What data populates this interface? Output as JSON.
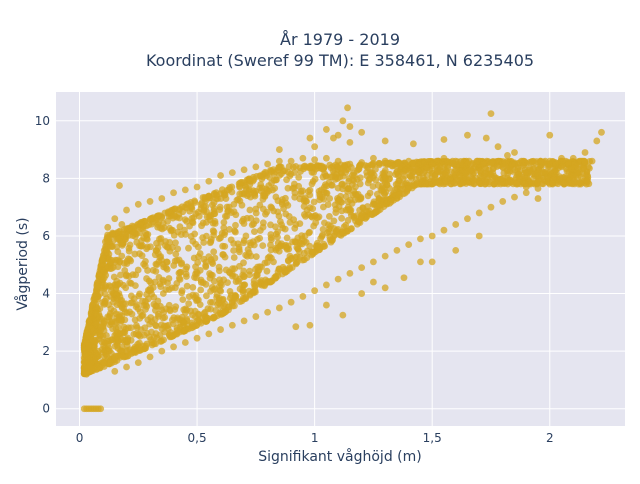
{
  "chart_data": {
    "type": "scatter",
    "title_line1": "År 1979 - 2019",
    "title_line2": "Koordinat (Sweref 99 TM): E 358461, N 6235405",
    "xlabel": "Signifikant våghöjd (m)",
    "ylabel": "Vågperiod (s)",
    "xlim": [
      -0.1,
      2.32
    ],
    "ylim": [
      -0.6,
      11.0
    ],
    "x_ticks": [
      0,
      0.5,
      1,
      1.5,
      2
    ],
    "x_tick_labels": [
      "0",
      "0,5",
      "1",
      "1,5",
      "2"
    ],
    "y_ticks": [
      0,
      2,
      4,
      6,
      8,
      10
    ],
    "y_tick_labels": [
      "0",
      "2",
      "4",
      "6",
      "8",
      "10"
    ],
    "grid": true,
    "marker_color": "#d4a520",
    "plot_bg": "#e5e5f0",
    "series": [
      {
        "points": [
          [
            0.02,
            0.0
          ],
          [
            0.03,
            0.0
          ],
          [
            0.04,
            0.0
          ],
          [
            0.05,
            0.0
          ],
          [
            0.06,
            0.0
          ],
          [
            0.07,
            0.0
          ],
          [
            0.08,
            0.0
          ],
          [
            0.09,
            0.0
          ],
          [
            0.02,
            1.4
          ],
          [
            0.03,
            1.2
          ],
          [
            0.04,
            1.7
          ],
          [
            0.05,
            2.2
          ],
          [
            0.06,
            2.7
          ],
          [
            0.07,
            3.3
          ],
          [
            0.08,
            3.9
          ],
          [
            0.09,
            4.6
          ],
          [
            0.1,
            5.2
          ],
          [
            0.11,
            5.8
          ],
          [
            0.12,
            6.3
          ],
          [
            0.14,
            6.1
          ],
          [
            0.15,
            6.6
          ],
          [
            0.18,
            6.4
          ],
          [
            0.17,
            7.75
          ],
          [
            0.2,
            6.9
          ],
          [
            0.25,
            7.1
          ],
          [
            0.3,
            7.2
          ],
          [
            0.35,
            7.3
          ],
          [
            0.4,
            7.5
          ],
          [
            0.45,
            7.6
          ],
          [
            0.5,
            7.7
          ],
          [
            0.55,
            7.9
          ],
          [
            0.6,
            8.1
          ],
          [
            0.65,
            8.2
          ],
          [
            0.7,
            8.3
          ],
          [
            0.75,
            8.4
          ],
          [
            0.8,
            8.5
          ],
          [
            0.85,
            8.6
          ],
          [
            0.9,
            8.6
          ],
          [
            0.95,
            8.7
          ],
          [
            1.0,
            8.65
          ],
          [
            1.05,
            8.7
          ],
          [
            1.1,
            8.6
          ],
          [
            1.15,
            8.5
          ],
          [
            1.2,
            8.55
          ],
          [
            1.25,
            8.7
          ],
          [
            1.3,
            8.6
          ],
          [
            1.35,
            8.5
          ],
          [
            1.4,
            8.6
          ],
          [
            1.45,
            8.5
          ],
          [
            1.5,
            8.5
          ],
          [
            1.55,
            8.7
          ],
          [
            1.6,
            8.6
          ],
          [
            1.65,
            8.5
          ],
          [
            1.7,
            8.6
          ],
          [
            1.75,
            8.5
          ],
          [
            1.8,
            8.4
          ],
          [
            1.85,
            8.3
          ],
          [
            1.9,
            8.2
          ],
          [
            1.95,
            8.1
          ],
          [
            2.0,
            8.2
          ],
          [
            2.05,
            8.4
          ],
          [
            2.1,
            8.7
          ],
          [
            2.15,
            8.9
          ],
          [
            2.2,
            9.3
          ],
          [
            2.22,
            9.6
          ],
          [
            2.0,
            9.5
          ],
          [
            2.05,
            8.7
          ],
          [
            2.1,
            8.1
          ],
          [
            1.82,
            8.8
          ],
          [
            1.78,
            9.1
          ],
          [
            1.75,
            10.25
          ],
          [
            1.73,
            9.4
          ],
          [
            1.55,
            9.35
          ],
          [
            1.65,
            9.5
          ],
          [
            1.42,
            9.2
          ],
          [
            1.3,
            9.3
          ],
          [
            1.2,
            9.6
          ],
          [
            1.15,
            9.25
          ],
          [
            1.1,
            9.5
          ],
          [
            1.05,
            9.7
          ],
          [
            1.15,
            9.8
          ],
          [
            1.12,
            10.0
          ],
          [
            1.14,
            10.45
          ],
          [
            1.08,
            9.4
          ],
          [
            0.98,
            9.4
          ],
          [
            1.0,
            9.1
          ],
          [
            0.85,
            9.0
          ],
          [
            0.15,
            1.3
          ],
          [
            0.2,
            1.45
          ],
          [
            0.25,
            1.6
          ],
          [
            0.3,
            1.8
          ],
          [
            0.35,
            2.0
          ],
          [
            0.4,
            2.15
          ],
          [
            0.45,
            2.3
          ],
          [
            0.5,
            2.45
          ],
          [
            0.55,
            2.6
          ],
          [
            0.6,
            2.75
          ],
          [
            0.65,
            2.9
          ],
          [
            0.7,
            3.05
          ],
          [
            0.75,
            3.2
          ],
          [
            0.8,
            3.35
          ],
          [
            0.85,
            3.5
          ],
          [
            0.9,
            3.7
          ],
          [
            0.95,
            3.9
          ],
          [
            1.0,
            4.1
          ],
          [
            1.05,
            4.3
          ],
          [
            1.1,
            4.5
          ],
          [
            1.15,
            4.7
          ],
          [
            1.2,
            4.9
          ],
          [
            1.25,
            5.1
          ],
          [
            1.3,
            5.3
          ],
          [
            1.35,
            5.5
          ],
          [
            1.4,
            5.7
          ],
          [
            1.45,
            5.9
          ],
          [
            1.5,
            6.0
          ],
          [
            1.55,
            6.2
          ],
          [
            1.6,
            6.4
          ],
          [
            1.65,
            6.6
          ],
          [
            1.7,
            6.8
          ],
          [
            1.75,
            7.0
          ],
          [
            1.8,
            7.2
          ],
          [
            1.85,
            7.35
          ],
          [
            1.9,
            7.5
          ],
          [
            1.95,
            7.65
          ],
          [
            2.0,
            7.8
          ],
          [
            2.05,
            7.9
          ],
          [
            2.1,
            8.0
          ],
          [
            1.12,
            3.25
          ],
          [
            1.05,
            3.6
          ],
          [
            0.98,
            2.9
          ],
          [
            0.92,
            2.85
          ],
          [
            1.2,
            4.0
          ],
          [
            1.25,
            4.4
          ],
          [
            1.38,
            4.55
          ],
          [
            1.3,
            4.2
          ],
          [
            1.45,
            5.1
          ],
          [
            1.5,
            5.1
          ],
          [
            1.6,
            5.5
          ],
          [
            1.7,
            6.0
          ],
          [
            1.5,
            7.8
          ],
          [
            1.6,
            8.3
          ],
          [
            1.7,
            7.9
          ],
          [
            1.8,
            8.0
          ],
          [
            1.9,
            7.7
          ],
          [
            1.95,
            7.3
          ],
          [
            2.15,
            8.55
          ],
          [
            2.18,
            8.6
          ],
          [
            2.0,
            8.6
          ],
          [
            1.85,
            8.9
          ]
        ]
      }
    ]
  }
}
